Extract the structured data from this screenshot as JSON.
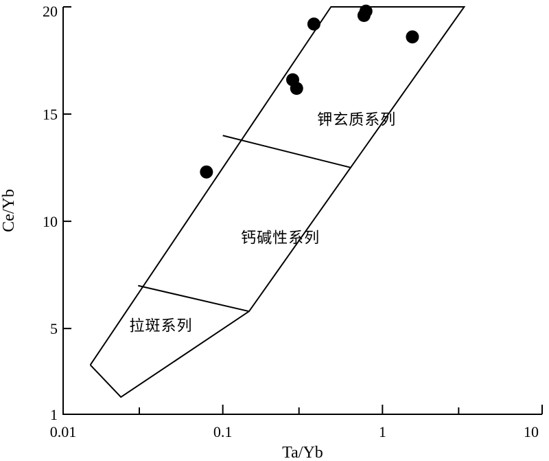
{
  "chart_data": {
    "type": "scatter",
    "title": "",
    "xlabel": "Ta/Yb",
    "ylabel": "Ce/Yb",
    "x_scale": "log",
    "y_scale": "linear",
    "xlim": [
      0.01,
      10
    ],
    "ylim": [
      1,
      20
    ],
    "x_ticks": [
      {
        "value": 0.01,
        "label": "0.01"
      },
      {
        "value": 0.1,
        "label": "0.1"
      },
      {
        "value": 1,
        "label": "1"
      },
      {
        "value": 10,
        "label": "10"
      }
    ],
    "y_ticks": [
      {
        "value": 1,
        "label": "1"
      },
      {
        "value": 5,
        "label": "5"
      },
      {
        "value": 10,
        "label": "10"
      },
      {
        "value": 15,
        "label": "15"
      },
      {
        "value": 20,
        "label": "20"
      }
    ],
    "x_minor_ticks": [
      0.03,
      0.3,
      3
    ],
    "grid": false,
    "points": [
      {
        "x": 0.079,
        "y": 12.3
      },
      {
        "x": 0.274,
        "y": 16.6
      },
      {
        "x": 0.29,
        "y": 16.2
      },
      {
        "x": 0.372,
        "y": 19.2
      },
      {
        "x": 0.766,
        "y": 19.6
      },
      {
        "x": 0.788,
        "y": 19.8
      },
      {
        "x": 1.54,
        "y": 18.6
      }
    ],
    "field_boundaries": {
      "outline": [
        {
          "x": 0.0148,
          "y": 3.3
        },
        {
          "x": 0.023,
          "y": 1.8
        },
        {
          "x": 0.146,
          "y": 5.8
        },
        {
          "x": 3.25,
          "y": 20
        },
        {
          "x": 0.476,
          "y": 20
        },
        {
          "x": 0.0148,
          "y": 3.3
        }
      ],
      "dividers": [
        [
          {
            "x": 0.0295,
            "y": 7.0
          },
          {
            "x": 0.146,
            "y": 5.8
          }
        ],
        [
          {
            "x": 0.1,
            "y": 14.0
          },
          {
            "x": 0.637,
            "y": 12.5
          }
        ]
      ]
    },
    "regions": [
      {
        "label": "钾玄质系列",
        "x": 0.39,
        "y": 14.5
      },
      {
        "label": "钙碱性系列",
        "x": 0.13,
        "y": 9.0
      },
      {
        "label": "拉斑系列",
        "x": 0.026,
        "y": 4.9
      }
    ]
  }
}
